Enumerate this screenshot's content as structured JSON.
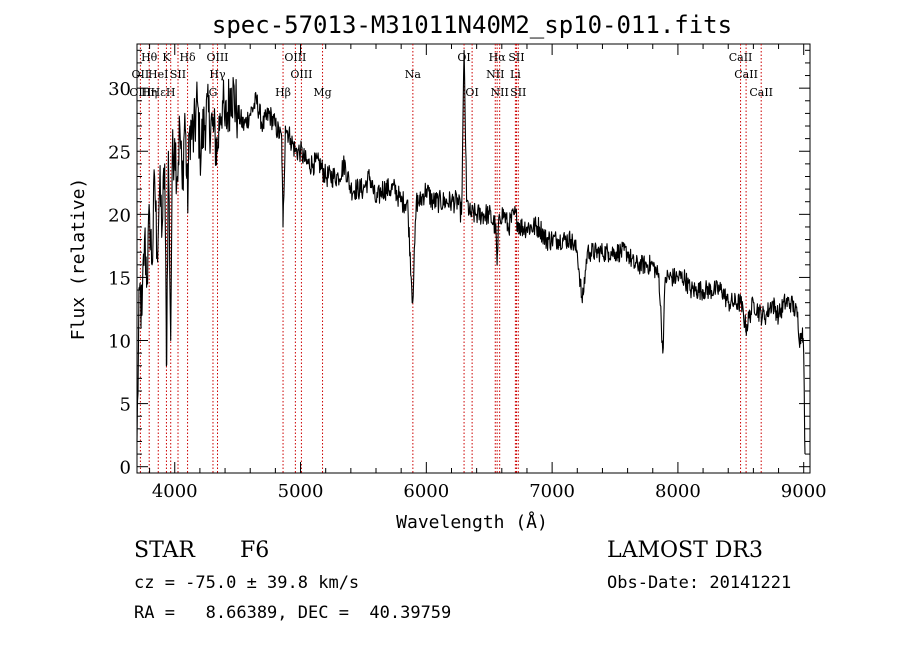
{
  "chart_data": {
    "type": "line",
    "title": "spec-57013-M31011N40M2_sp10-011.fits",
    "xlabel": "Wavelength (Å)",
    "ylabel": "Flux (relative)",
    "xlim": [
      3700,
      9050
    ],
    "ylim": [
      -0.5,
      33.5
    ],
    "x_ticks": [
      4000,
      5000,
      6000,
      7000,
      8000,
      9000
    ],
    "x_tick_labels": [
      "4000",
      "5000",
      "6000",
      "7000",
      "8000",
      "9000"
    ],
    "y_ticks": [
      0,
      5,
      10,
      15,
      20,
      25,
      30
    ],
    "y_tick_labels": [
      "0",
      "5",
      "10",
      "15",
      "20",
      "25",
      "30"
    ],
    "series": [
      {
        "name": "flux",
        "x": [
          3700,
          3720,
          3740,
          3760,
          3780,
          3800,
          3820,
          3840,
          3860,
          3880,
          3900,
          3920,
          3934,
          3950,
          3968,
          3980,
          4000,
          4020,
          4040,
          4060,
          4080,
          4102,
          4120,
          4150,
          4180,
          4200,
          4250,
          4300,
          4340,
          4360,
          4380,
          4400,
          4450,
          4500,
          4550,
          4600,
          4650,
          4700,
          4750,
          4800,
          4850,
          4861,
          4880,
          4920,
          4960,
          5000,
          5050,
          5100,
          5150,
          5200,
          5250,
          5300,
          5350,
          5400,
          5450,
          5500,
          5550,
          5600,
          5650,
          5700,
          5750,
          5800,
          5850,
          5892,
          5920,
          5950,
          6000,
          6050,
          6100,
          6150,
          6200,
          6250,
          6280,
          6300,
          6320,
          6350,
          6400,
          6450,
          6500,
          6550,
          6563,
          6580,
          6620,
          6650,
          6700,
          6750,
          6800,
          6850,
          6900,
          6950,
          7000,
          7050,
          7100,
          7150,
          7200,
          7240,
          7280,
          7300,
          7350,
          7400,
          7450,
          7500,
          7550,
          7600,
          7650,
          7700,
          7750,
          7800,
          7850,
          7880,
          7900,
          7950,
          8000,
          8050,
          8100,
          8150,
          8200,
          8250,
          8300,
          8350,
          8400,
          8450,
          8500,
          8542,
          8600,
          8662,
          8700,
          8750,
          8800,
          8850,
          8900,
          8950,
          8970,
          8990,
          9000,
          9010
        ],
        "values": [
          2,
          14,
          12,
          18,
          15,
          20,
          16,
          23,
          17,
          22,
          19,
          24,
          8,
          25,
          10,
          24,
          26,
          23,
          27,
          22,
          28,
          21,
          27,
          26,
          29,
          25,
          28,
          27,
          25,
          28,
          29,
          27,
          30,
          28,
          27,
          28,
          29,
          27,
          28,
          27,
          26,
          19,
          27,
          26,
          25,
          25,
          24,
          24,
          24,
          23,
          23,
          23,
          24,
          22,
          22,
          22,
          23,
          21,
          22,
          22,
          22,
          21,
          21,
          13,
          21,
          21,
          22,
          21,
          21,
          21,
          21,
          21,
          20,
          33,
          21,
          20,
          20,
          20,
          20,
          19,
          16,
          20,
          20,
          19,
          20,
          19,
          19,
          19,
          19,
          18,
          18,
          18,
          18,
          18,
          17,
          13,
          17,
          17,
          17,
          17,
          17,
          17,
          17,
          17,
          16,
          16,
          16,
          16,
          15,
          9,
          15,
          15,
          15,
          15,
          14,
          14,
          14,
          14,
          14,
          14,
          13,
          13,
          13,
          11,
          13,
          12,
          12,
          13,
          12,
          13,
          13,
          12,
          10,
          11,
          9,
          1
        ]
      }
    ],
    "line_markers": [
      {
        "wl": 3727,
        "top": "",
        "mid": "OII",
        "bot": "OIII"
      },
      {
        "wl": 3797,
        "top": "Hθ",
        "mid": "",
        "bot": "Hη"
      },
      {
        "wl": 3869,
        "top": "",
        "mid": "HeI",
        "bot": "Hε"
      },
      {
        "wl": 3934,
        "top": "K",
        "mid": "",
        "bot": ""
      },
      {
        "wl": 3968,
        "top": "",
        "mid": "",
        "bot": "H"
      },
      {
        "wl": 4026,
        "top": "",
        "mid": "SII",
        "bot": ""
      },
      {
        "wl": 4102,
        "top": "Hδ",
        "mid": "",
        "bot": ""
      },
      {
        "wl": 4304,
        "top": "",
        "mid": "",
        "bot": "G"
      },
      {
        "wl": 4340,
        "top": "OIII",
        "mid": "Hγ",
        "bot": ""
      },
      {
        "wl": 4861,
        "top": "",
        "mid": "",
        "bot": "Hβ"
      },
      {
        "wl": 4959,
        "top": "OIII",
        "mid": "",
        "bot": ""
      },
      {
        "wl": 5007,
        "top": "",
        "mid": "OIII",
        "bot": ""
      },
      {
        "wl": 5175,
        "top": "",
        "mid": "",
        "bot": "Mg"
      },
      {
        "wl": 5893,
        "top": "",
        "mid": "Na",
        "bot": ""
      },
      {
        "wl": 6300,
        "top": "OI",
        "mid": "",
        "bot": ""
      },
      {
        "wl": 6364,
        "top": "",
        "mid": "",
        "bot": "OI"
      },
      {
        "wl": 6548,
        "top": "",
        "mid": "NII",
        "bot": ""
      },
      {
        "wl": 6563,
        "top": "Hα",
        "mid": "",
        "bot": ""
      },
      {
        "wl": 6583,
        "top": "",
        "mid": "",
        "bot": "NII"
      },
      {
        "wl": 6708,
        "top": "",
        "mid": "Li",
        "bot": ""
      },
      {
        "wl": 6717,
        "top": "SII",
        "mid": "",
        "bot": ""
      },
      {
        "wl": 6731,
        "top": "",
        "mid": "",
        "bot": "SII"
      },
      {
        "wl": 8498,
        "top": "CaII",
        "mid": "",
        "bot": ""
      },
      {
        "wl": 8542,
        "top": "",
        "mid": "CaII",
        "bot": ""
      },
      {
        "wl": 8662,
        "top": "",
        "mid": "",
        "bot": "CaII"
      }
    ]
  },
  "info": {
    "object_class": "STAR",
    "subclass": "F6",
    "survey": "LAMOST DR3",
    "cz_text": "cz = -75.0 ± 39.8 km/s",
    "obs_date_text": "Obs-Date: 20141221",
    "coords_text": "RA =   8.66389, DEC =  40.39759"
  },
  "colors": {
    "line": "#000000",
    "marker": "#cc0000",
    "axes": "#000000",
    "background": "#ffffff"
  }
}
